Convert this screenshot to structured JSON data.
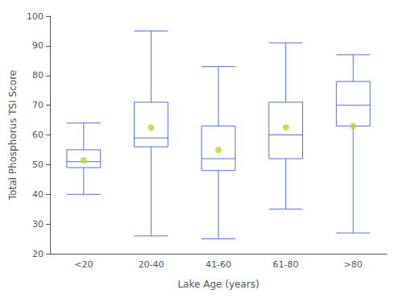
{
  "chart_data": {
    "type": "boxplot",
    "xlabel": "Lake Age (years)",
    "ylabel": "Total Phosphorus TSI Score",
    "categories": [
      "<20",
      "20-40",
      "41-60",
      "61-80",
      ">80"
    ],
    "boxes": [
      {
        "min": 40,
        "q1": 49,
        "median": 51,
        "q3": 55,
        "max": 64,
        "mean": 51.5
      },
      {
        "min": 26,
        "q1": 56,
        "median": 59,
        "q3": 71,
        "max": 95,
        "mean": 62.5
      },
      {
        "min": 25,
        "q1": 48,
        "median": 52,
        "q3": 63,
        "max": 83,
        "mean": 55
      },
      {
        "min": 35,
        "q1": 52,
        "median": 60,
        "q3": 71,
        "max": 91,
        "mean": 62.5
      },
      {
        "min": 27,
        "q1": 63,
        "median": 70,
        "q3": 78,
        "max": 87,
        "mean": 63
      }
    ],
    "ylim": [
      20,
      100
    ],
    "yticks": [
      20,
      30,
      40,
      50,
      60,
      70,
      80,
      90,
      100
    ],
    "grid": false
  }
}
